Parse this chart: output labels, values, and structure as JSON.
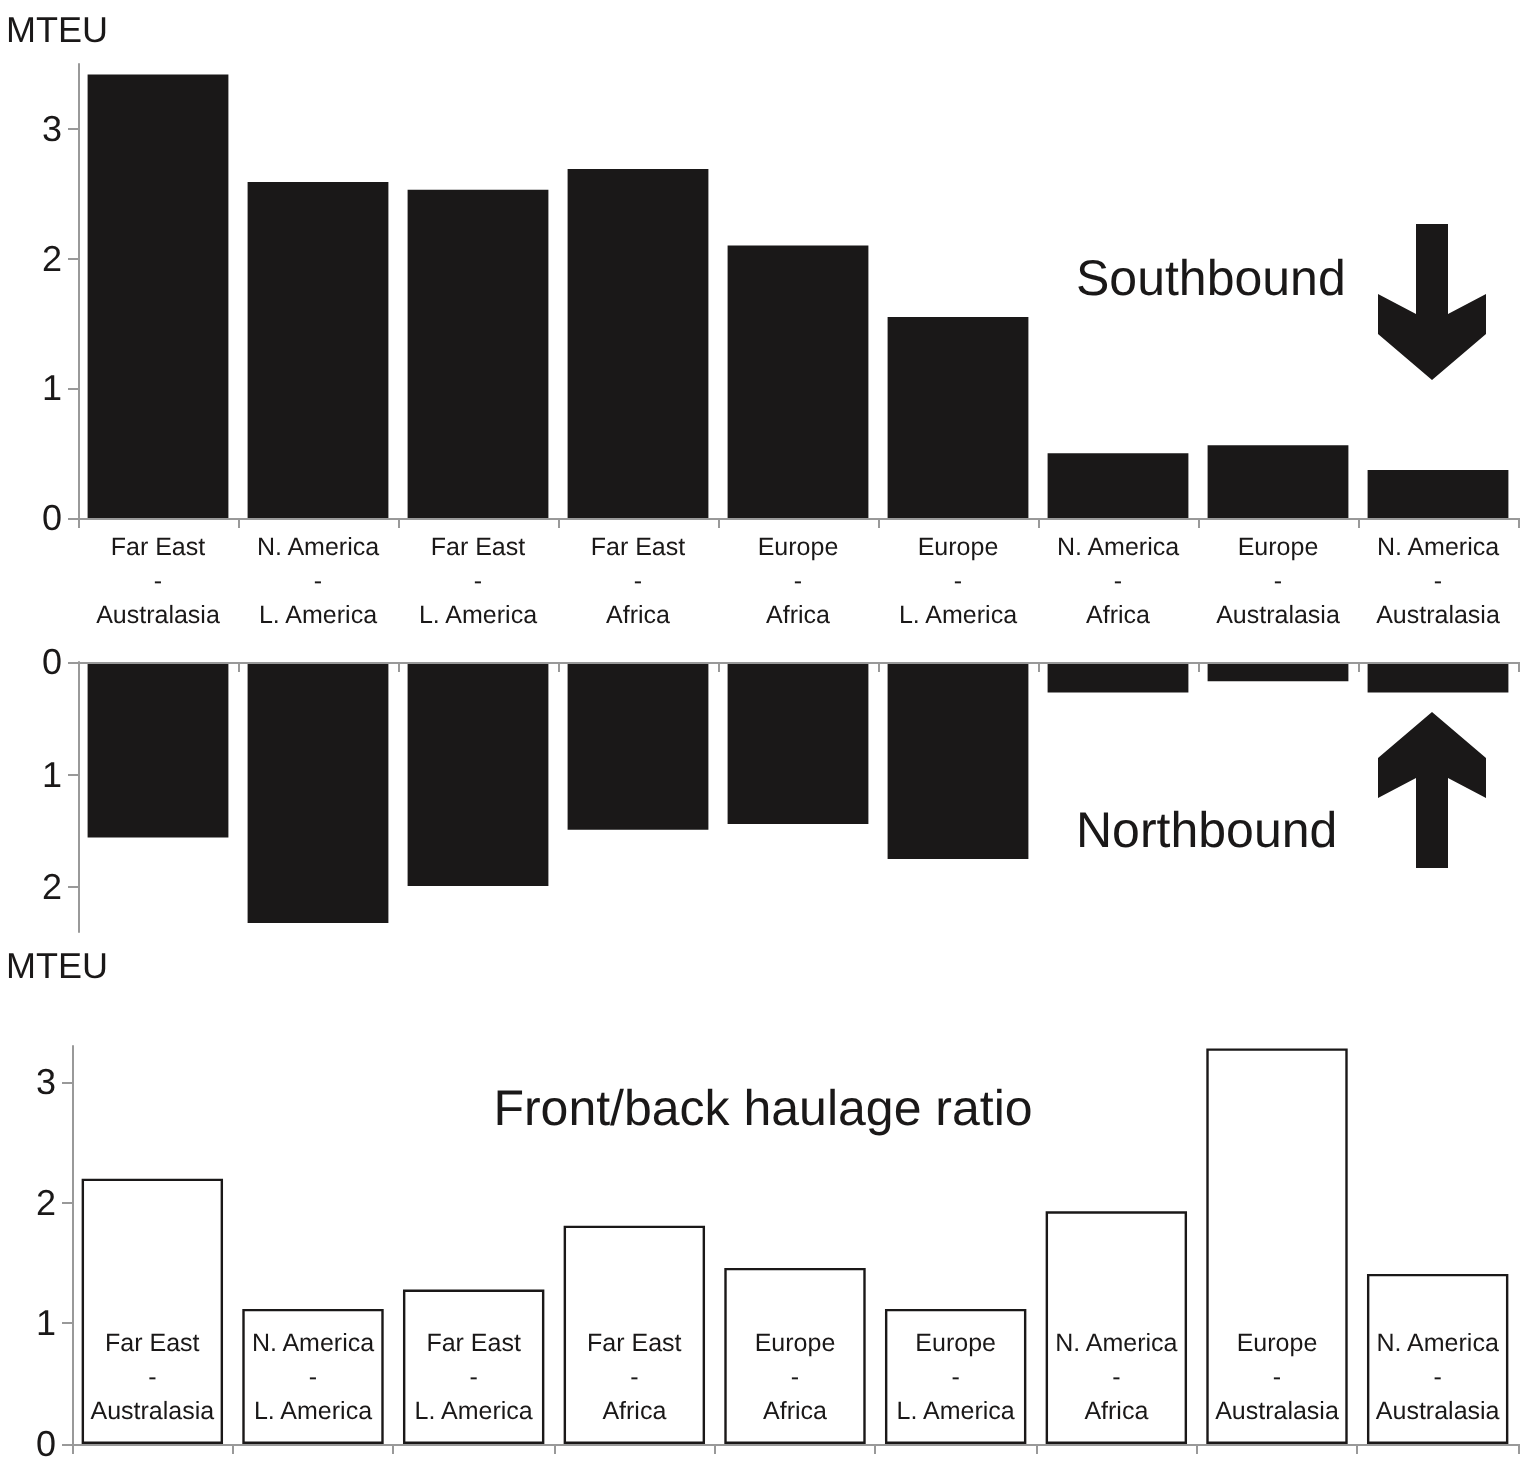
{
  "chart_data": [
    {
      "type": "bar",
      "title": "Southbound",
      "ylabel": "MTEU",
      "categories": [
        "Far East\n-\nAustralasia",
        "N. America\n-\nL. America",
        "Far East\n-\nL. America",
        "Far East\n-\nAfrica",
        "Europe\n-\nAfrica",
        "Europe\n-\nL. America",
        "N. America\n-\nAfrica",
        "Europe\n-\nAustralasia",
        "N. America\n-\nAustralasia"
      ],
      "values": [
        3.42,
        2.59,
        2.53,
        2.69,
        2.1,
        1.55,
        0.5,
        0.56,
        0.37
      ],
      "color": "#1a1818",
      "ylim": [
        0,
        3.5
      ],
      "yticks": [
        0,
        1,
        2,
        3
      ]
    },
    {
      "type": "bar",
      "title": "Northbound",
      "ylabel": "MTEU",
      "categories": [
        null,
        null,
        null,
        null,
        null,
        null,
        null,
        null,
        null
      ],
      "values": [
        1.56,
        2.32,
        1.99,
        1.49,
        1.44,
        1.75,
        0.27,
        0.17,
        0.27
      ],
      "color": "#1a1818",
      "ylim": [
        2.4,
        0
      ],
      "yticks": [
        0,
        1,
        2
      ],
      "tick_labels": "y"
    },
    {
      "type": "bar",
      "title": "Front/back haulage ratio",
      "categories": [
        "Far East\n-\nAustralasia",
        "N. America\n-\nL. America",
        "Far East\n-\nL. America",
        "Far East\n-\nAfrica",
        "Europe\n-\nAfrica",
        "Europe\n-\nL. America",
        "N. America\n-\nAfrica",
        "Europe\n-\nAustralasia",
        "N. America\n-\nAustralasia"
      ],
      "values": [
        2.2,
        1.12,
        1.28,
        1.81,
        1.46,
        1.12,
        1.93,
        3.28,
        1.41
      ],
      "color": "#ffffff",
      "ylim": [
        0,
        3.3
      ],
      "yticks": [
        0,
        1,
        2,
        3
      ]
    }
  ]
}
